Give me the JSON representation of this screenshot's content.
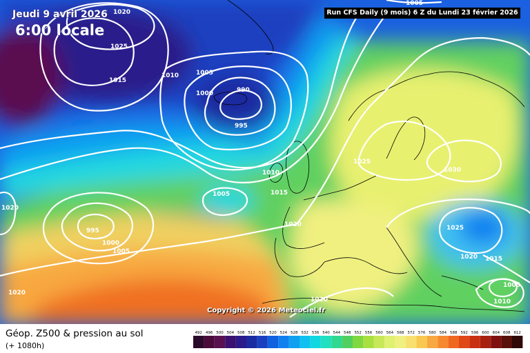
{
  "header": {
    "date_label": "Jeudi 9 avril 2026",
    "time_label": "6:00 locale",
    "run_label": "Run CFS Daily (9 mois) 6 Z du Lundi 23 février 2026"
  },
  "copyright": "Copyright © 2026 Meteociel.fr",
  "footer": {
    "field_title": "Géop. Z500 & pression au sol",
    "forecast_hours": "(+ 1080h)"
  },
  "legend": {
    "values": [
      "492",
      "496",
      "500",
      "504",
      "508",
      "512",
      "516",
      "520",
      "524",
      "528",
      "532",
      "536",
      "540",
      "544",
      "548",
      "552",
      "556",
      "560",
      "564",
      "568",
      "572",
      "576",
      "580",
      "584",
      "588",
      "592",
      "596",
      "600",
      "604",
      "608",
      "612"
    ],
    "colors": [
      "#2a0a2a",
      "#4a0a3a",
      "#5a1050",
      "#3a1070",
      "#2a1a8a",
      "#1a2aa0",
      "#1a40c0",
      "#1060e0",
      "#1080f0",
      "#10a0f0",
      "#10c0f0",
      "#10d8e0",
      "#20e0c0",
      "#30d890",
      "#50d060",
      "#80d840",
      "#a8e040",
      "#c8e858",
      "#e0f070",
      "#f0f080",
      "#f8e070",
      "#f8c850",
      "#f8a840",
      "#f88830",
      "#f06820",
      "#e04818",
      "#c83010",
      "#a82010",
      "#801010",
      "#581008",
      "#300808"
    ]
  },
  "isobars": [
    {
      "value": "1020",
      "id": "1020-top"
    },
    {
      "value": "1025",
      "id": "1025-nw"
    },
    {
      "value": "1015",
      "id": "1015-nw"
    },
    {
      "value": "1010",
      "id": "1010-n"
    },
    {
      "value": "1005",
      "id": "1005-n"
    },
    {
      "value": "1000",
      "id": "1000-n"
    },
    {
      "value": "990",
      "id": "990-low"
    },
    {
      "value": "995",
      "id": "995-low"
    },
    {
      "value": "1005",
      "id": "1005-top"
    },
    {
      "value": "1010",
      "id": "1010-mid"
    },
    {
      "value": "1015",
      "id": "1015-mid"
    },
    {
      "value": "1005",
      "id": "1005-mid"
    },
    {
      "value": "1020",
      "id": "1020-w"
    },
    {
      "value": "995",
      "id": "995-sw"
    },
    {
      "value": "1000",
      "id": "1000-sw"
    },
    {
      "value": "1005",
      "id": "1005-sw"
    },
    {
      "value": "1020",
      "id": "1020-iberia"
    },
    {
      "value": "1020",
      "id": "1020-sw"
    },
    {
      "value": "1025",
      "id": "1025-scand"
    },
    {
      "value": "1030",
      "id": "1030-russia"
    },
    {
      "value": "1025",
      "id": "1025-balkans"
    },
    {
      "value": "1020",
      "id": "1020-med"
    },
    {
      "value": "1015",
      "id": "1015-east"
    },
    {
      "value": "1020",
      "id": "1020-africa"
    },
    {
      "value": "1005",
      "id": "1005-se"
    },
    {
      "value": "1010",
      "id": "1010-se"
    }
  ]
}
